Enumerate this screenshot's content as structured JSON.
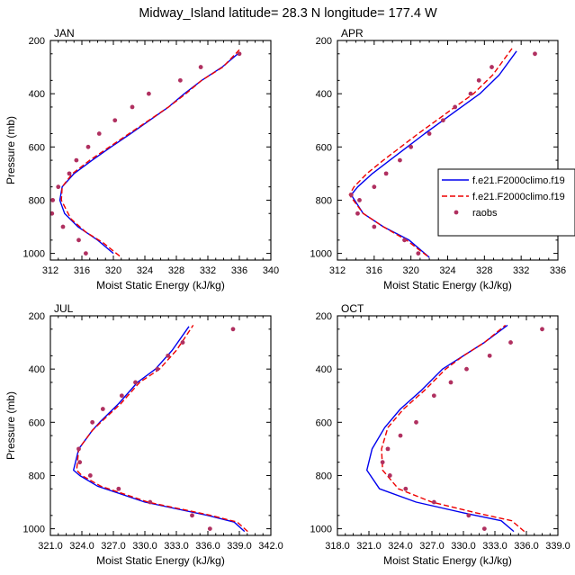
{
  "figure": {
    "title": "Midway_Island  latitude= 28.3 N longitude= 177.4 W",
    "legend": {
      "panel": 1,
      "entries": [
        {
          "label": "f.e21.F2000climo.f19",
          "color": "#0000ee",
          "dash": "solid",
          "marker": false
        },
        {
          "label": "f.e21.F2000climo.f19",
          "color": "#ee0000",
          "dash": "dashed",
          "marker": false
        },
        {
          "label": "raobs",
          "color": "#b03060",
          "dash": "none",
          "marker": true
        }
      ]
    }
  },
  "chart_data": [
    {
      "type": "line",
      "title": "JAN",
      "xlabel": "Moist Static Energy (kJ/kg)",
      "ylabel": "Pressure (mb)",
      "xlim": [
        312,
        340
      ],
      "ylim": [
        1025,
        200
      ],
      "xticks": [
        312,
        316,
        320,
        324,
        328,
        332,
        336,
        340
      ],
      "xtick_labels": [
        "312",
        "316",
        "320",
        "324",
        "328",
        "332",
        "336",
        "340"
      ],
      "yticks": [
        200,
        400,
        600,
        800,
        1000
      ],
      "ytick_labels": [
        "200",
        "400",
        "600",
        "800",
        "1000"
      ],
      "series": [
        {
          "color": "#0000ee",
          "dash": "solid",
          "x": [
            320.0,
            318.0,
            315.5,
            313.8,
            313.2,
            313.5,
            315.0,
            317.3,
            319.7,
            322.2,
            324.6,
            327.0,
            329.0,
            331.2,
            333.8,
            335.8
          ],
          "y": [
            1000,
            950,
            900,
            850,
            800,
            750,
            700,
            650,
            600,
            550,
            500,
            450,
            400,
            350,
            300,
            250
          ]
        },
        {
          "color": "#ee0000",
          "dash": "dashed",
          "x": [
            320.8,
            318.7,
            316.5,
            314.6,
            313.4,
            313.5,
            314.8,
            317.0,
            319.5,
            322.0,
            324.5,
            327.0,
            329.2,
            331.2,
            333.9,
            336.0
          ],
          "y": [
            1010,
            960,
            920,
            870,
            800,
            750,
            700,
            650,
            600,
            550,
            500,
            450,
            400,
            350,
            300,
            235
          ]
        },
        {
          "color": "#b03060",
          "marker": true,
          "x": [
            316.5,
            315.6,
            313.6,
            312.2,
            312.3,
            313.0,
            314.4,
            315.3,
            316.8,
            318.2,
            320.2,
            322.4,
            324.5,
            328.5,
            331.1,
            336.0
          ],
          "y": [
            1000,
            950,
            900,
            850,
            800,
            750,
            700,
            650,
            600,
            550,
            500,
            450,
            400,
            350,
            300,
            250
          ]
        }
      ]
    },
    {
      "type": "line",
      "title": "APR",
      "xlabel": "Moist Static Energy (kJ/kg)",
      "ylabel": "",
      "xlim": [
        312,
        336
      ],
      "ylim": [
        1025,
        200
      ],
      "xticks": [
        312,
        316,
        320,
        324,
        328,
        332,
        336
      ],
      "xtick_labels": [
        "312",
        "316",
        "320",
        "324",
        "328",
        "332",
        "336"
      ],
      "yticks": [
        200,
        400,
        600,
        800,
        1000
      ],
      "ytick_labels": [
        "200",
        "400",
        "600",
        "800",
        "1000"
      ],
      "series": [
        {
          "color": "#0000ee",
          "dash": "solid",
          "x": [
            322.0,
            319.8,
            317.0,
            314.8,
            313.5,
            314.2,
            315.8,
            317.7,
            319.6,
            321.5,
            323.5,
            325.5,
            327.5,
            329.6,
            331.5
          ],
          "y": [
            1015,
            950,
            900,
            850,
            780,
            750,
            700,
            650,
            600,
            550,
            500,
            450,
            400,
            330,
            240
          ]
        },
        {
          "color": "#ee0000",
          "dash": "dashed",
          "x": [
            321.8,
            319.5,
            317.0,
            314.8,
            313.3,
            313.8,
            315.2,
            317.0,
            318.9,
            320.8,
            322.8,
            324.8,
            326.8,
            328.9,
            331.0
          ],
          "y": [
            1010,
            950,
            900,
            850,
            780,
            750,
            700,
            650,
            600,
            550,
            500,
            450,
            400,
            330,
            230
          ]
        },
        {
          "color": "#b03060",
          "marker": true,
          "x": [
            320.8,
            319.3,
            316.0,
            314.2,
            313.5,
            314.4,
            316.0,
            317.3,
            318.8,
            320.0,
            322.0,
            323.5,
            324.8,
            326.5,
            327.4,
            328.8,
            333.5
          ],
          "y": [
            1000,
            950,
            900,
            850,
            780,
            800,
            750,
            700,
            650,
            600,
            550,
            500,
            450,
            400,
            350,
            300,
            250
          ]
        }
      ]
    },
    {
      "type": "line",
      "title": "JUL",
      "xlabel": "Moist Static Energy (kJ/kg)",
      "ylabel": "Pressure (mb)",
      "xlim": [
        321,
        342
      ],
      "ylim": [
        1025,
        200
      ],
      "xticks": [
        321,
        324,
        327,
        330,
        333,
        336,
        339,
        342
      ],
      "xtick_labels": [
        "321.0",
        "324.0",
        "327.0",
        "330.0",
        "333.0",
        "336.0",
        "339.0",
        "342.0"
      ],
      "yticks": [
        200,
        400,
        600,
        800,
        1000
      ],
      "ytick_labels": [
        "200",
        "400",
        "600",
        "800",
        "1000"
      ],
      "series": [
        {
          "color": "#0000ee",
          "dash": "solid",
          "x": [
            339.5,
            338.5,
            336.0,
            330.0,
            325.5,
            323.8,
            323.2,
            323.7,
            325.0,
            325.7,
            327.5,
            329.3,
            331.0,
            332.6,
            334.2
          ],
          "y": [
            1010,
            975,
            950,
            900,
            840,
            800,
            780,
            700,
            630,
            600,
            530,
            450,
            400,
            330,
            240
          ]
        },
        {
          "color": "#ee0000",
          "dash": "dashed",
          "x": [
            339.8,
            338.8,
            336.3,
            330.3,
            325.8,
            324.0,
            323.5,
            323.7,
            325.0,
            325.8,
            327.7,
            329.5,
            331.4,
            333.0,
            334.6
          ],
          "y": [
            1010,
            975,
            950,
            900,
            840,
            800,
            780,
            700,
            630,
            600,
            530,
            450,
            400,
            330,
            235
          ]
        },
        {
          "color": "#b03060",
          "marker": true,
          "x": [
            336.2,
            334.5,
            330.5,
            327.5,
            324.8,
            323.8,
            323.7,
            325.0,
            326.0,
            327.8,
            329.1,
            331.2,
            332.2,
            333.6,
            338.4
          ],
          "y": [
            1000,
            950,
            900,
            850,
            800,
            750,
            700,
            600,
            550,
            500,
            450,
            400,
            350,
            300,
            250
          ]
        }
      ]
    },
    {
      "type": "line",
      "title": "OCT",
      "xlabel": "Moist Static Energy (kJ/kg)",
      "ylabel": "",
      "xlim": [
        318,
        339
      ],
      "ylim": [
        1025,
        200
      ],
      "xticks": [
        318,
        321,
        324,
        327,
        330,
        333,
        336,
        339
      ],
      "xtick_labels": [
        "318.0",
        "321.0",
        "324.0",
        "327.0",
        "330.0",
        "333.0",
        "336.0",
        "339.0"
      ],
      "yticks": [
        200,
        400,
        600,
        800,
        1000
      ],
      "ytick_labels": [
        "200",
        "400",
        "600",
        "800",
        "1000"
      ],
      "series": [
        {
          "color": "#0000ee",
          "dash": "solid",
          "x": [
            334.8,
            333.6,
            330.0,
            325.5,
            322.0,
            320.8,
            321.3,
            322.5,
            324.0,
            326.0,
            328.0,
            330.0,
            332.0,
            334.2
          ],
          "y": [
            1010,
            970,
            940,
            900,
            850,
            780,
            700,
            620,
            550,
            480,
            400,
            350,
            300,
            235
          ]
        },
        {
          "color": "#ee0000",
          "dash": "dashed",
          "x": [
            335.8,
            334.6,
            331.2,
            327.0,
            323.8,
            322.3,
            322.2,
            322.8,
            324.3,
            326.3,
            328.3,
            330.0,
            332.0,
            334.0
          ],
          "y": [
            1010,
            970,
            940,
            900,
            850,
            780,
            700,
            620,
            550,
            480,
            400,
            350,
            300,
            235
          ]
        },
        {
          "color": "#b03060",
          "marker": true,
          "x": [
            332.0,
            330.5,
            327.2,
            324.5,
            323.0,
            322.3,
            322.8,
            324.0,
            325.5,
            327.2,
            328.8,
            330.3,
            332.5,
            334.5,
            337.5
          ],
          "y": [
            1000,
            950,
            900,
            850,
            800,
            750,
            700,
            650,
            600,
            500,
            450,
            400,
            350,
            300,
            250
          ]
        }
      ]
    }
  ]
}
